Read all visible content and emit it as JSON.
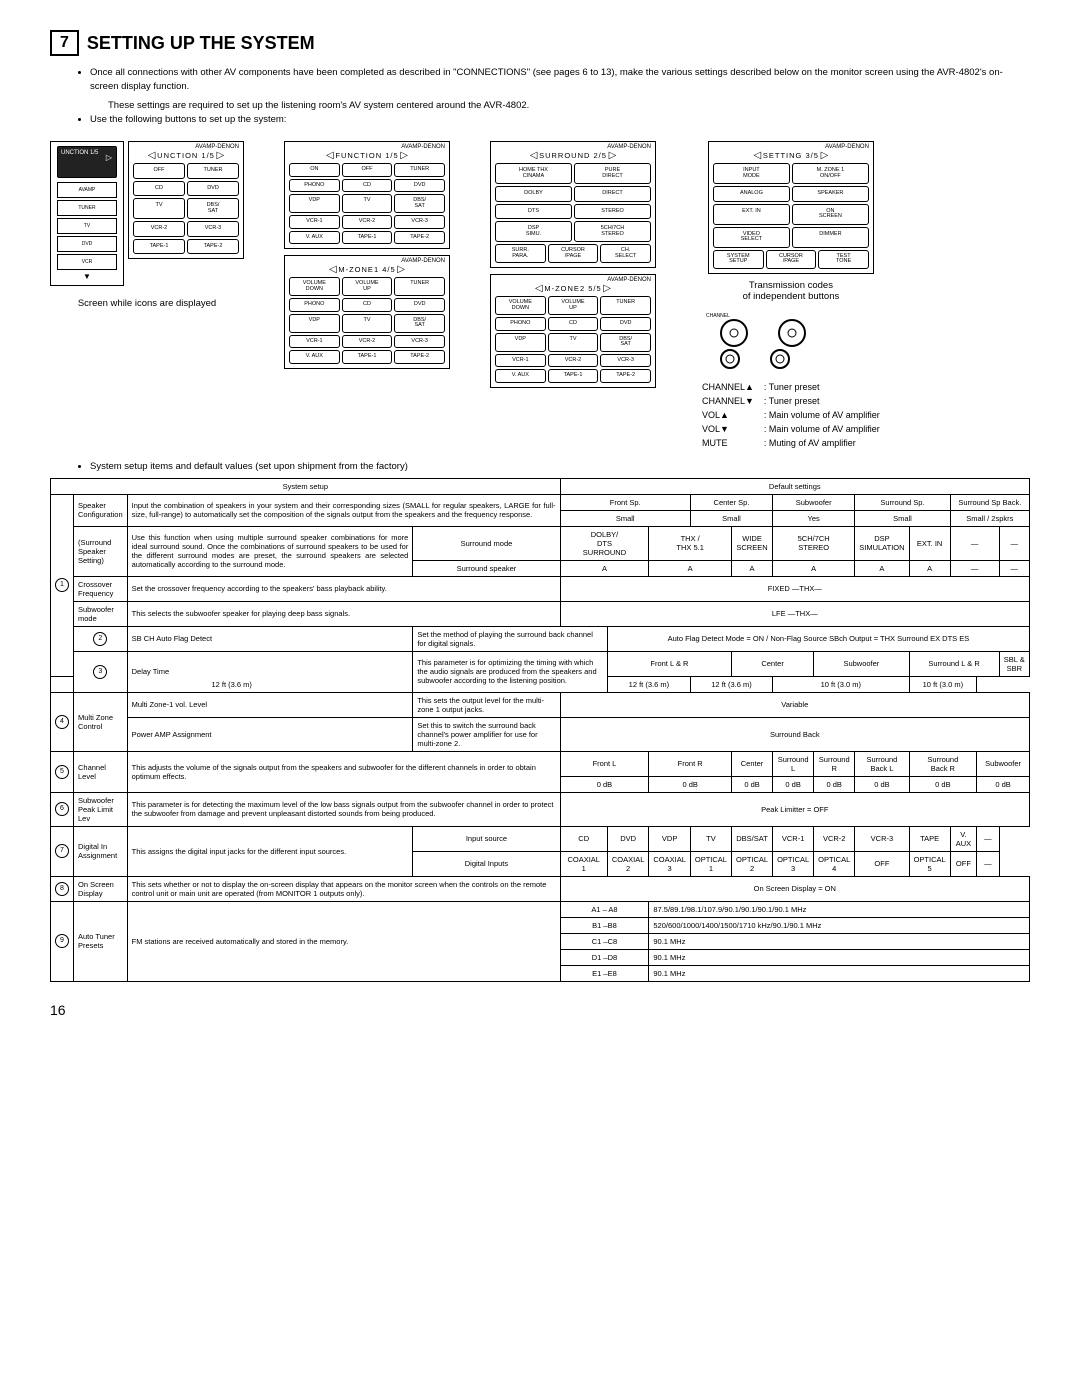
{
  "section_num": "7",
  "section_title": "SETTING UP THE SYSTEM",
  "intro": [
    "Once all connections with other AV components have been completed as described in \"CONNECTIONS\" (see pages 6 to 13), make the various settings described below on the monitor screen using the AVR-4802's on-screen display function.",
    "These settings are required to set up the listening room's AV system centered around the AVR-4802.",
    "Use the following buttons to set up the system:"
  ],
  "screen_cap": "Screen while icons are displayed",
  "brand": "AVAMP-DENON",
  "panels": {
    "p0": {
      "title": "UNCTION 1/5",
      "grid": [
        [
          "OFF",
          "TUNER"
        ],
        [
          "CD",
          "DVD"
        ],
        [
          "TV",
          "DBS/\nSAT"
        ],
        [
          "VCR-2",
          "VCR-3"
        ],
        [
          "TAPE-1",
          "TAPE-2"
        ]
      ]
    },
    "p1": {
      "title": "FUNCTION  1/5",
      "grid": [
        [
          "ON",
          "OFF",
          "TUNER"
        ],
        [
          "PHONO",
          "CD",
          "DVD"
        ],
        [
          "VDP",
          "TV",
          "DBS/\nSAT"
        ],
        [
          "VCR-1",
          "VCR-2",
          "VCR-3"
        ],
        [
          "V. AUX",
          "TAPE-1",
          "TAPE-2"
        ]
      ]
    },
    "p2": {
      "title": "M-ZONE1  4/5",
      "grid": [
        [
          "VOLUME\nDOWN",
          "VOLUME\nUP",
          "TUNER"
        ],
        [
          "PHONO",
          "CD",
          "DVD"
        ],
        [
          "VDP",
          "TV",
          "DBS/\nSAT"
        ],
        [
          "VCR-1",
          "VCR-2",
          "VCR-3"
        ],
        [
          "V. AUX",
          "TAPE-1",
          "TAPE-2"
        ]
      ]
    },
    "p3": {
      "title": "SURROUND 2/5",
      "grid": [
        [
          "HOME THX\nCINAMA",
          "PURE\nDIRECT"
        ],
        [
          "DOLBY",
          "DIRECT"
        ],
        [
          "DTS",
          "STEREO"
        ],
        [
          "DSP\nSIMU.",
          "5CH/7CH\nSTEREO"
        ],
        [
          "SURR.\nPARA.",
          "CURSOR\n/PAGE",
          "CH.\nSELECT"
        ]
      ]
    },
    "p4": {
      "title": "M-ZONE2  5/5",
      "grid": [
        [
          "VOLUME\nDOWN",
          "VOLUME\nUP",
          "TUNER"
        ],
        [
          "PHONO",
          "CD",
          "DVD"
        ],
        [
          "VDP",
          "TV",
          "DBS/\nSAT"
        ],
        [
          "VCR-1",
          "VCR-2",
          "VCR-3"
        ],
        [
          "V. AUX",
          "TAPE-1",
          "TAPE-2"
        ]
      ]
    },
    "p5": {
      "title": "SETTING  3/5",
      "grid": [
        [
          "INPUT\nMODE",
          "M. ZONE 1\nON/OFF"
        ],
        [
          "ANALOG",
          "SPEAKER"
        ],
        [
          "EXT. IN",
          "ON\nSCREEN"
        ],
        [
          "VIDEO\nSELECT",
          "DIMMER"
        ],
        [
          "SYSTEM\nSETUP",
          "CURSOR\n/PAGE",
          "TEST\nTONE"
        ]
      ]
    }
  },
  "icons": [
    "AVAMP",
    "TUNER",
    "TV",
    "DVD",
    "VCR"
  ],
  "trans1": "Transmission codes",
  "trans2": "of independent buttons",
  "ch": {
    "a": "CHANNEL▲",
    "av": ": Tuner preset",
    "b": "CHANNEL▼",
    "bv": ": Tuner preset",
    "c": "VOL▲",
    "cv": ": Main volume of AV amplifier",
    "d": "VOL▼",
    "dv": ": Main volume of AV amplifier",
    "e": "MUTE",
    "ev": ": Muting of AV amplifier"
  },
  "subhead": "System setup items and default values (set upon shipment from the factory)",
  "th": {
    "a": "System setup",
    "b": "Default settings"
  },
  "t": {
    "r1a": "Speaker Configuration",
    "r1b": "Input the combination of speakers in your system and their corresponding sizes (SMALL for regular speakers, LARGE for full-size, full-range) to automatically set the composition of the signals output from the speakers and the frequency response.",
    "r1c": [
      "Front Sp.",
      "Center Sp.",
      "Subwoofer",
      "Surround Sp.",
      "Surround Sp Back."
    ],
    "r1d": [
      "Small",
      "Small",
      "Yes",
      "Small",
      "Small / 2spkrs"
    ],
    "r2a": "(Surround Speaker Setting)",
    "r2b": "Use this function when using multiple surround speaker combinations for more ideal surround sound. Once the combinations of surround speakers to be used for the different surround modes are preset, the surround speakers are selected automatically according to the surround mode.",
    "r2c1": "Surround mode",
    "r2c2": "Surround speaker",
    "r2d": [
      "DOLBY/\nDTS\nSURROUND",
      "THX /\nTHX 5.1",
      "WIDE\nSCREEN",
      "5CH/7CH\nSTEREO",
      "DSP\nSIMULATION",
      "EXT. IN",
      "—",
      "—"
    ],
    "r2e": [
      "A",
      "A",
      "A",
      "A",
      "A",
      "A",
      "—",
      "—"
    ],
    "r3a": "Crossover Frequency",
    "r3b": "Set the crossover frequency according to the speakers' bass playback ability.",
    "r3c": "FIXED  —THX—",
    "r4a": "Subwoofer mode",
    "r4b": "This selects the subwoofer speaker for playing deep bass signals.",
    "r4c": "LFE  —THX—",
    "r5a": "SB CH Auto Flag Detect",
    "r5b": "Set the method of playing the surround back channel for digital signals.",
    "r5c": "Auto Flag Detect Mode = ON  /  Non-Flag Source SBch Output = THX Surround EX DTS ES",
    "r6a": "Delay Time",
    "r6b": "This parameter is for optimizing the timing with which the audio signals are produced from the speakers and subwoofer according to the listening position.",
    "r6c": [
      "Front L & R",
      "Center",
      "Subwoofer",
      "Surround L & R",
      "SBL & SBR"
    ],
    "r6d": [
      "12 ft (3.6 m)",
      "12 ft (3.6 m)",
      "12 ft (3.6 m)",
      "10 ft (3.0 m)",
      "10 ft (3.0 m)"
    ],
    "r7a": "Multi Zone Control",
    "r7b1": "Multi Zone-1 vol. Level",
    "r7b2": "This sets the output level for the multi-zone 1 output jacks.",
    "r7c": "Variable",
    "r7d1": "Power AMP Assignment",
    "r7d2": "Set this to switch the surround back channel's power amplifier for use for multi-zone 2.",
    "r7e": "Surround Back",
    "r8a": "Channel Level",
    "r8b": "This adjusts the volume of the signals output from the speakers and subwoofer for the different channels in order to obtain optimum effects.",
    "r8c": [
      "Front L",
      "Front R",
      "Center",
      "Surround\nL",
      "Surround\nR",
      "Surround\nBack L",
      "Surround\nBack R",
      "Subwoofer"
    ],
    "r8d": [
      "0 dB",
      "0 dB",
      "0 dB",
      "0 dB",
      "0 dB",
      "0 dB",
      "0 dB",
      "0 dB"
    ],
    "r9a": "Subwoofer Peak Limit Lev",
    "r9b": "This parameter is for detecting the maximum level of the low bass signals output from the subwoofer channel in order to protect the subwoofer from damage and prevent unpleasant distorted sounds from being produced.",
    "r9c": "Peak Limitter = OFF",
    "r10a": "Digital In Assignment",
    "r10b": "This assigns the digital input jacks for the different input sources.",
    "r10c1": "Input source",
    "r10c2": "Digital Inputs",
    "r10d": [
      "CD",
      "DVD",
      "VDP",
      "TV",
      "DBS/SAT",
      "VCR-1",
      "VCR-2",
      "VCR-3",
      "TAPE",
      "V. AUX",
      "—"
    ],
    "r10e": [
      "COAXIAL\n1",
      "COAXIAL\n2",
      "COAXIAL\n3",
      "OPTICAL\n1",
      "OPTICAL\n2",
      "OPTICAL\n3",
      "OPTICAL\n4",
      "OFF",
      "OPTICAL\n5",
      "OFF",
      "—"
    ],
    "r11a": "On Screen Display",
    "r11b": "This sets whether or not to display the on-screen display that appears on the monitor screen when the controls on the remote control unit or main unit are operated (from MONITOR 1 outputs only).",
    "r11c": "On Screen Display = ON",
    "r12a": "Auto Tuner Presets",
    "r12b": "FM stations are received automatically and stored in the memory.",
    "r12c": [
      [
        "A1 – A8",
        "87.5/89.1/98.1/107.9/90.1/90.1/90.1/90.1 MHz"
      ],
      [
        "B1 –B8",
        "520/600/1000/1400/1500/1710 kHz/90.1/90.1 MHz"
      ],
      [
        "C1 –C8",
        "90.1 MHz"
      ],
      [
        "D1 –D8",
        "90.1 MHz"
      ],
      [
        "E1 –E8",
        "90.1 MHz"
      ]
    ]
  },
  "page": "16"
}
